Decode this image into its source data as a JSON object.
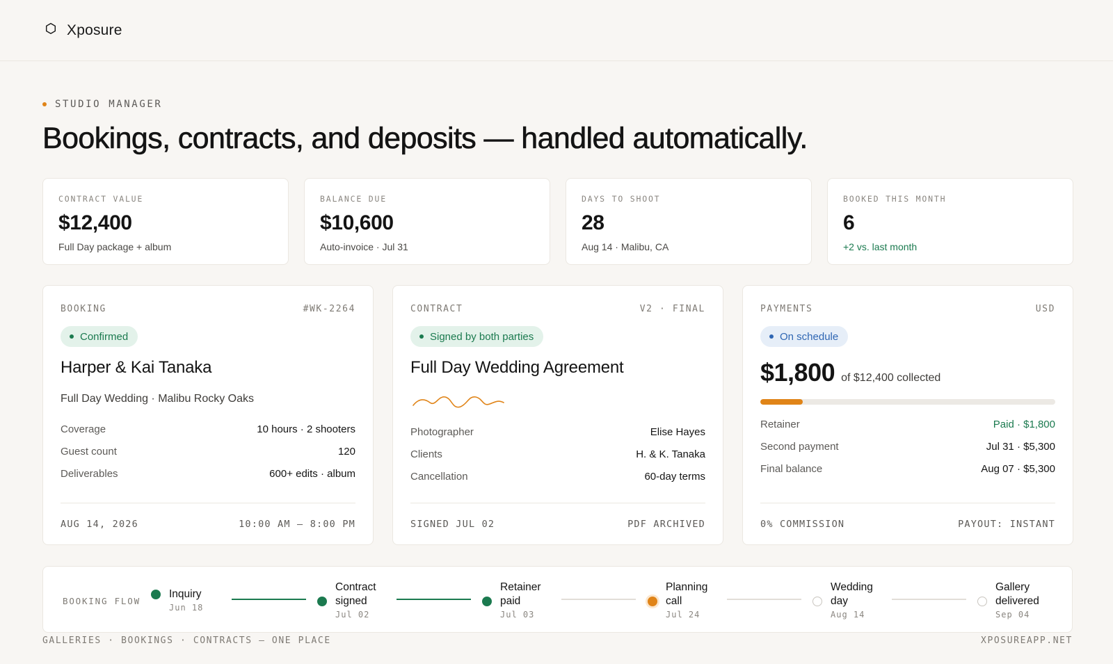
{
  "app": {
    "name": "Xposure",
    "icon": "hexagon-icon"
  },
  "colors": {
    "accent_orange": "#e08418",
    "green": "#1b7a4f",
    "blue": "#2f66b3"
  },
  "hero": {
    "eyebrow": "STUDIO MANAGER",
    "headline": "Bookings, contracts, and deposits — handled automatically."
  },
  "stats": [
    {
      "label": "CONTRACT VALUE",
      "value": "$12,400",
      "sub": "Full Day package + album"
    },
    {
      "label": "BALANCE DUE",
      "value": "$10,600",
      "sub": "Auto-invoice · Jul 31"
    },
    {
      "label": "DAYS TO SHOOT",
      "value": "28",
      "sub": "Aug 14 · Malibu, CA"
    },
    {
      "label": "BOOKED THIS MONTH",
      "value": "6",
      "sub": "+2 vs. last month"
    }
  ],
  "booking": {
    "label": "BOOKING",
    "id": "#WK-2264",
    "status": "Confirmed",
    "title": "Harper & Kai Tanaka",
    "subtitle": "Full Day Wedding · Malibu Rocky Oaks",
    "rows": [
      {
        "k": "Coverage",
        "v": "10 hours · 2 shooters"
      },
      {
        "k": "Guest count",
        "v": "120"
      },
      {
        "k": "Deliverables",
        "v": "600+ edits · album"
      }
    ],
    "foot_left": "AUG 14, 2026",
    "foot_right": "10:00 AM – 8:00 PM"
  },
  "contract": {
    "label": "CONTRACT",
    "version": "V2 · FINAL",
    "status": "Signed by both parties",
    "title": "Full Day Wedding Agreement",
    "rows": [
      {
        "k": "Photographer",
        "v": "Elise Hayes"
      },
      {
        "k": "Clients",
        "v": "H. & K. Tanaka"
      },
      {
        "k": "Cancellation",
        "v": "60-day terms"
      }
    ],
    "foot_left": "SIGNED JUL 02",
    "foot_right": "PDF ARCHIVED"
  },
  "payments": {
    "label": "PAYMENTS",
    "currency": "USD",
    "status": "On schedule",
    "collected": "$1,800",
    "of_total": "of $12,400 collected",
    "progress_fraction": 0.145,
    "rows": [
      {
        "k": "Retainer",
        "v": "Paid · $1,800"
      },
      {
        "k": "Second payment",
        "v": "Jul 31 · $5,300"
      },
      {
        "k": "Final balance",
        "v": "Aug 07 · $5,300"
      }
    ],
    "foot_left": "0% COMMISSION",
    "foot_right": "PAYOUT: INSTANT"
  },
  "flow": {
    "label": "BOOKING FLOW",
    "steps": [
      {
        "name": "Inquiry",
        "date": "Jun 18",
        "state": "done"
      },
      {
        "name": "Contract signed",
        "date": "Jul 02",
        "state": "done"
      },
      {
        "name": "Retainer paid",
        "date": "Jul 03",
        "state": "done"
      },
      {
        "name": "Planning call",
        "date": "Jul 24",
        "state": "current"
      },
      {
        "name": "Wedding day",
        "date": "Aug 14",
        "state": "todo"
      },
      {
        "name": "Gallery delivered",
        "date": "Sep 04",
        "state": "todo"
      }
    ]
  },
  "footer": {
    "left": "GALLERIES · BOOKINGS · CONTRACTS — ONE PLACE",
    "right": "XPOSUREAPP.NET"
  }
}
